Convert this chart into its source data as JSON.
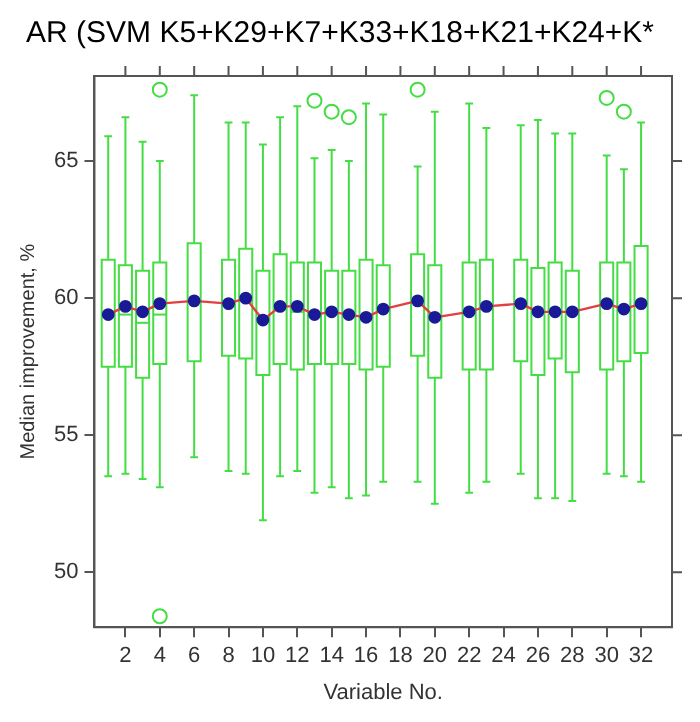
{
  "chart_data": {
    "type": "box",
    "title": "AR (SVM K5+K29+K7+K33+K18+K21+K24+K*",
    "xlabel": "Variable No.",
    "ylabel": "Median improvement, %",
    "x": [
      1,
      2,
      3,
      4,
      6,
      8,
      9,
      10,
      11,
      12,
      13,
      14,
      15,
      16,
      17,
      19,
      20,
      22,
      23,
      25,
      26,
      27,
      28,
      30,
      31,
      32
    ],
    "xlim": [
      0.2,
      33.8
    ],
    "xticks": [
      2,
      4,
      6,
      8,
      10,
      12,
      14,
      16,
      18,
      20,
      22,
      24,
      26,
      28,
      30,
      32
    ],
    "ylim": [
      48,
      68.1
    ],
    "yticks": [
      50,
      55,
      60,
      65
    ],
    "grid": false,
    "legend": false,
    "series": [
      {
        "type": "box",
        "color": "#44dd44",
        "boxes": [
          {
            "low": 53.5,
            "q1": 57.5,
            "median": 59.4,
            "q3": 61.4,
            "high": 65.9
          },
          {
            "low": 53.6,
            "q1": 57.5,
            "median": 59.4,
            "q3": 61.2,
            "high": 66.6
          },
          {
            "low": 53.4,
            "q1": 57.1,
            "median": 59.1,
            "q3": 61.0,
            "high": 65.7
          },
          {
            "low": 53.1,
            "q1": 57.6,
            "median": 59.4,
            "q3": 61.3,
            "high": 65.0,
            "outliers": [
              67.6,
              48.4
            ]
          },
          {
            "low": 54.2,
            "q1": 57.7,
            "median": 59.9,
            "q3": 62.0,
            "high": 67.4
          },
          {
            "low": 53.7,
            "q1": 57.9,
            "median": 59.8,
            "q3": 61.4,
            "high": 66.4
          },
          {
            "low": 53.6,
            "q1": 57.8,
            "median": 60.0,
            "q3": 61.8,
            "high": 66.4
          },
          {
            "low": 51.9,
            "q1": 57.2,
            "median": 59.2,
            "q3": 61.0,
            "high": 65.6
          },
          {
            "low": 53.5,
            "q1": 57.6,
            "median": 59.6,
            "q3": 61.6,
            "high": 66.6
          },
          {
            "low": 53.7,
            "q1": 57.4,
            "median": 59.5,
            "q3": 61.3,
            "high": 67.0
          },
          {
            "low": 52.9,
            "q1": 57.6,
            "median": 59.4,
            "q3": 61.3,
            "high": 65.1,
            "outliers": [
              67.2
            ]
          },
          {
            "low": 53.1,
            "q1": 57.6,
            "median": 59.4,
            "q3": 61.0,
            "high": 65.4,
            "outliers": [
              66.8
            ]
          },
          {
            "low": 52.7,
            "q1": 57.6,
            "median": 59.4,
            "q3": 61.0,
            "high": 65.0,
            "outliers": [
              66.6
            ]
          },
          {
            "low": 52.8,
            "q1": 57.4,
            "median": 59.3,
            "q3": 61.4,
            "high": 67.1
          },
          {
            "low": 53.3,
            "q1": 57.5,
            "median": 59.6,
            "q3": 61.2,
            "high": 66.7
          },
          {
            "low": 53.3,
            "q1": 57.9,
            "median": 59.9,
            "q3": 61.6,
            "high": 64.8,
            "outliers": [
              67.6
            ]
          },
          {
            "low": 52.5,
            "q1": 57.1,
            "median": 59.3,
            "q3": 61.2,
            "high": 66.8
          },
          {
            "low": 52.9,
            "q1": 57.4,
            "median": 59.5,
            "q3": 61.3,
            "high": 67.1
          },
          {
            "low": 53.3,
            "q1": 57.4,
            "median": 59.7,
            "q3": 61.4,
            "high": 66.2
          },
          {
            "low": 53.6,
            "q1": 57.7,
            "median": 59.8,
            "q3": 61.4,
            "high": 66.3
          },
          {
            "low": 52.7,
            "q1": 57.2,
            "median": 59.5,
            "q3": 61.1,
            "high": 66.5
          },
          {
            "low": 52.7,
            "q1": 57.8,
            "median": 59.5,
            "q3": 61.3,
            "high": 66.0
          },
          {
            "low": 52.6,
            "q1": 57.3,
            "median": 59.5,
            "q3": 61.0,
            "high": 66.0
          },
          {
            "low": 53.6,
            "q1": 57.4,
            "median": 59.8,
            "q3": 61.3,
            "high": 65.2,
            "outliers": [
              67.3
            ]
          },
          {
            "low": 53.5,
            "q1": 57.7,
            "median": 59.6,
            "q3": 61.3,
            "high": 64.7,
            "outliers": [
              66.8
            ]
          },
          {
            "low": 53.3,
            "q1": 58.0,
            "median": 59.8,
            "q3": 61.9,
            "high": 66.4
          }
        ]
      },
      {
        "type": "line",
        "color": "#e04040",
        "marker": "circle",
        "x": [
          1,
          2,
          3,
          4,
          6,
          8,
          9,
          10,
          11,
          12,
          13,
          14,
          15,
          16,
          17,
          19,
          20,
          22,
          23,
          25,
          26,
          27,
          28,
          30,
          31,
          32
        ],
        "values": [
          59.4,
          59.7,
          59.5,
          59.8,
          59.9,
          59.8,
          60.0,
          59.2,
          59.7,
          59.7,
          59.4,
          59.5,
          59.4,
          59.3,
          59.6,
          59.9,
          59.3,
          59.5,
          59.7,
          59.8,
          59.5,
          59.5,
          59.5,
          59.8,
          59.6,
          59.8
        ]
      }
    ]
  }
}
